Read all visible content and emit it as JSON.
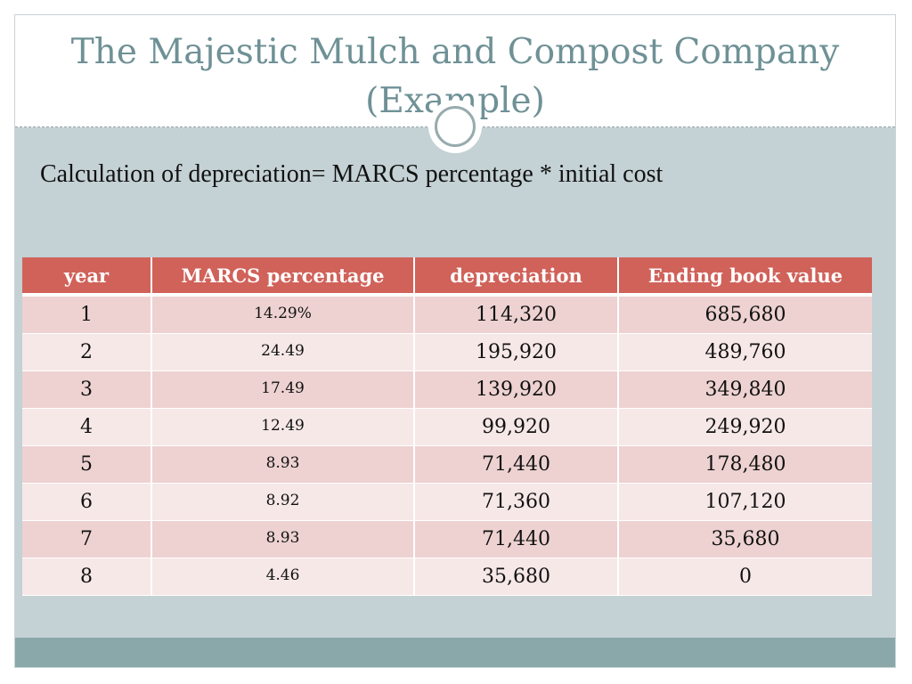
{
  "slide": {
    "title": "The Majestic Mulch and Compost Company (Example)",
    "subtitle": "Calculation of depreciation= MARCS percentage * initial cost"
  },
  "colors": {
    "title": "#6f9196",
    "header_bg": "#d0625a",
    "row_odd": "#edd2d1",
    "row_even": "#f6e8e7",
    "content_bg": "#c4d1d5",
    "footer_bg": "#8aa7aa"
  },
  "table": {
    "headers": [
      "year",
      "MARCS percentage",
      "depreciation",
      "Ending book value"
    ],
    "rows": [
      {
        "year": "1",
        "pct": "14.29%",
        "depreciation": "114,320",
        "ending": "685,680"
      },
      {
        "year": "2",
        "pct": "24.49",
        "depreciation": "195,920",
        "ending": "489,760"
      },
      {
        "year": "3",
        "pct": "17.49",
        "depreciation": "139,920",
        "ending": "349,840"
      },
      {
        "year": "4",
        "pct": "12.49",
        "depreciation": "99,920",
        "ending": "249,920"
      },
      {
        "year": "5",
        "pct": "8.93",
        "depreciation": "71,440",
        "ending": "178,480"
      },
      {
        "year": "6",
        "pct": "8.92",
        "depreciation": "71,360",
        "ending": "107,120"
      },
      {
        "year": "7",
        "pct": "8.93",
        "depreciation": "71,440",
        "ending": "35,680"
      },
      {
        "year": "8",
        "pct": "4.46",
        "depreciation": "35,680",
        "ending": "0"
      }
    ]
  }
}
